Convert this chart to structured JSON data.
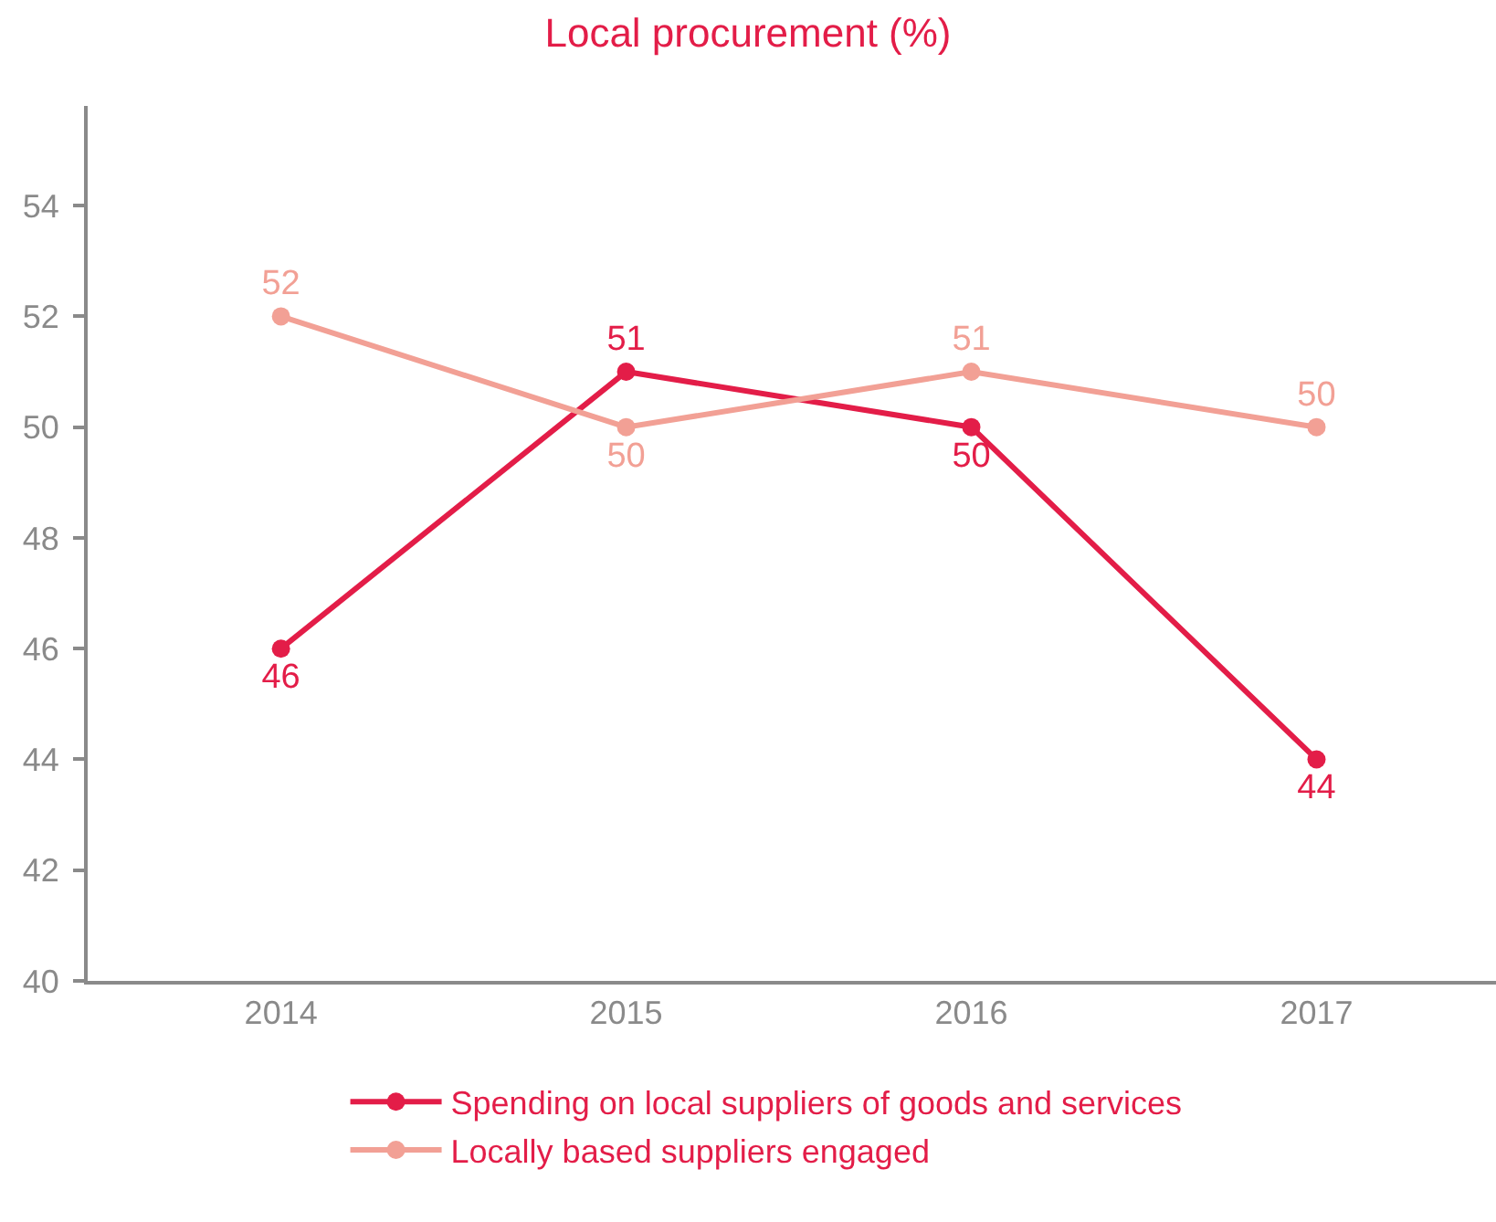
{
  "chart_data": {
    "type": "line",
    "title": "Local procurement (%)",
    "categories": [
      "2014",
      "2015",
      "2016",
      "2017"
    ],
    "series": [
      {
        "name": "Spending on local suppliers of goods and services",
        "color": "#e31d48",
        "values": [
          46,
          51,
          50,
          44
        ]
      },
      {
        "name": "Locally based suppliers engaged",
        "color": "#f2a095",
        "values": [
          52,
          50,
          51,
          50
        ]
      }
    ],
    "ylim": [
      40,
      55.8
    ],
    "yticks": [
      40,
      42,
      44,
      46,
      48,
      50,
      52,
      54
    ],
    "legend": "bottom",
    "marker": "circle",
    "line_style": "solid",
    "data_labels": true
  }
}
